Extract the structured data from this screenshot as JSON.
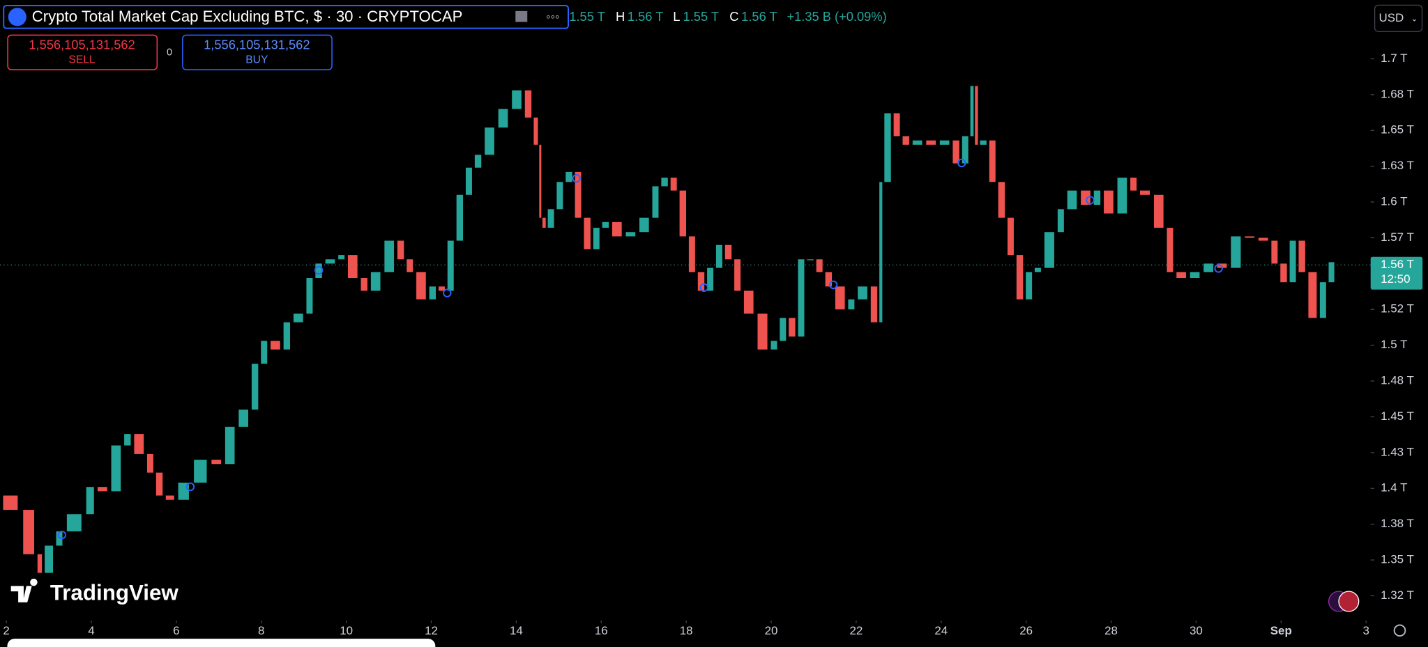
{
  "header": {
    "title": "Crypto Total Market Cap Excluding BTC, $ · 30 · CRYPTOCAP",
    "open": "1.55 T",
    "high_label": "H",
    "high": "1.56 T",
    "low_label": "L",
    "low": "1.55 T",
    "close_label": "C",
    "close": "1.56 T",
    "change": "+1.35 B (+0.09%)"
  },
  "trade": {
    "sell_price": "1,556,105,131,562",
    "sell": "SELL",
    "spread": "0",
    "buy_price": "1,556,105,131,562",
    "buy": "BUY"
  },
  "currency": "USD",
  "watermark": "TradingView",
  "chart_data": {
    "type": "candlestick",
    "up_color": "#26a69a",
    "down_color": "#ef5350",
    "grid": false,
    "x": [
      1.85,
      2.34,
      2.71,
      2.86,
      3.14,
      3.35,
      3.84,
      4.1,
      4.42,
      4.74,
      4.96,
      5.28,
      5.49,
      5.71,
      5.99,
      6.35,
      6.78,
      7.1,
      7.42,
      7.74,
      7.96,
      8.17,
      8.49,
      8.71,
      9.03,
      9.24,
      9.46,
      9.78,
      9.99,
      10.31,
      10.53,
      10.85,
      11.17,
      11.39,
      11.6,
      11.92,
      12.14,
      12.35,
      12.56,
      12.78,
      12.99,
      13.21,
      13.53,
      13.85,
      14.17,
      14.39,
      14.53,
      14.6,
      14.71,
      14.92,
      15.13,
      15.35,
      15.56,
      15.78,
      15.99,
      16.21,
      16.53,
      16.85,
      17.17,
      17.38,
      17.6,
      17.81,
      18.03,
      18.24,
      18.46,
      18.67,
      18.88,
      19.1,
      19.31,
      19.63,
      19.96,
      20.17,
      20.38,
      20.6,
      20.81,
      21.03,
      21.24,
      21.46,
      21.78,
      21.99,
      22.31,
      22.53,
      22.63,
      22.85,
      23.06,
      23.28,
      23.6,
      23.92,
      24.24,
      24.46,
      24.67,
      24.78,
      24.88,
      25.1,
      25.31,
      25.53,
      25.74,
      25.96,
      26.17,
      26.38,
      26.71,
      26.92,
      27.24,
      27.56,
      27.78,
      28.1,
      28.42,
      28.63,
      28.96,
      29.28,
      29.49,
      29.81,
      30.13,
      30.45,
      30.77,
      31.1,
      31.42,
      31.74,
      31.95,
      32.17,
      32.38,
      32.6,
      32.88,
      33.09,
      33.28
    ],
    "values": [
      1.395,
      1.385,
      1.354,
      1.341,
      1.36,
      1.37,
      1.382,
      1.401,
      1.398,
      1.43,
      1.438,
      1.424,
      1.411,
      1.395,
      1.392,
      1.404,
      1.42,
      1.417,
      1.443,
      1.455,
      1.487,
      1.503,
      1.497,
      1.516,
      1.522,
      1.547,
      1.557,
      1.56,
      1.563,
      1.547,
      1.538,
      1.551,
      1.573,
      1.56,
      1.551,
      1.532,
      1.541,
      1.538,
      1.573,
      1.605,
      1.624,
      1.633,
      1.652,
      1.665,
      1.678,
      1.659,
      1.64,
      1.589,
      1.582,
      1.595,
      1.614,
      1.621,
      1.589,
      1.567,
      1.582,
      1.586,
      1.576,
      1.579,
      1.589,
      1.611,
      1.617,
      1.608,
      1.576,
      1.551,
      1.538,
      1.554,
      1.57,
      1.56,
      1.538,
      1.522,
      1.497,
      1.503,
      1.519,
      1.506,
      1.56,
      1.56,
      1.551,
      1.541,
      1.525,
      1.532,
      1.541,
      1.516,
      1.614,
      1.662,
      1.646,
      1.64,
      1.643,
      1.64,
      1.643,
      1.627,
      1.646,
      1.681,
      1.64,
      1.643,
      1.614,
      1.589,
      1.563,
      1.532,
      1.551,
      1.554,
      1.579,
      1.595,
      1.608,
      1.598,
      1.608,
      1.592,
      1.617,
      1.608,
      1.605,
      1.582,
      1.551,
      1.547,
      1.551,
      1.557,
      1.554,
      1.576,
      1.575,
      1.573,
      1.557,
      1.544,
      1.573,
      1.551,
      1.519,
      1.544,
      1.558
    ],
    "xlim": [
      1.85,
      34.0
    ],
    "xticks": [
      2,
      4,
      6,
      8,
      10,
      12,
      14,
      16,
      18,
      20,
      22,
      24,
      26,
      28,
      30,
      {
        "value": 32,
        "label": "Sep"
      },
      {
        "value": 34,
        "label": "3"
      }
    ],
    "ylim": [
      1.309,
      1.741
    ],
    "yticks": [
      {
        "value": 1.7,
        "label": "1.7 T"
      },
      {
        "value": 1.675,
        "label": "1.68 T"
      },
      {
        "value": 1.65,
        "label": "1.65 T"
      },
      {
        "value": 1.625,
        "label": "1.63 T"
      },
      {
        "value": 1.6,
        "label": "1.6 T"
      },
      {
        "value": 1.575,
        "label": "1.57 T"
      },
      {
        "value": 1.525,
        "label": "1.52 T"
      },
      {
        "value": 1.5,
        "label": "1.5 T"
      },
      {
        "value": 1.475,
        "label": "1.48 T"
      },
      {
        "value": 1.45,
        "label": "1.45 T"
      },
      {
        "value": 1.425,
        "label": "1.43 T"
      },
      {
        "value": 1.4,
        "label": "1.4 T"
      },
      {
        "value": 1.375,
        "label": "1.38 T"
      },
      {
        "value": 1.35,
        "label": "1.35 T"
      },
      {
        "value": 1.325,
        "label": "1.32 T"
      }
    ],
    "last_price": {
      "value": 1.556,
      "label": "1.56 T"
    },
    "countdown": "12:50"
  }
}
